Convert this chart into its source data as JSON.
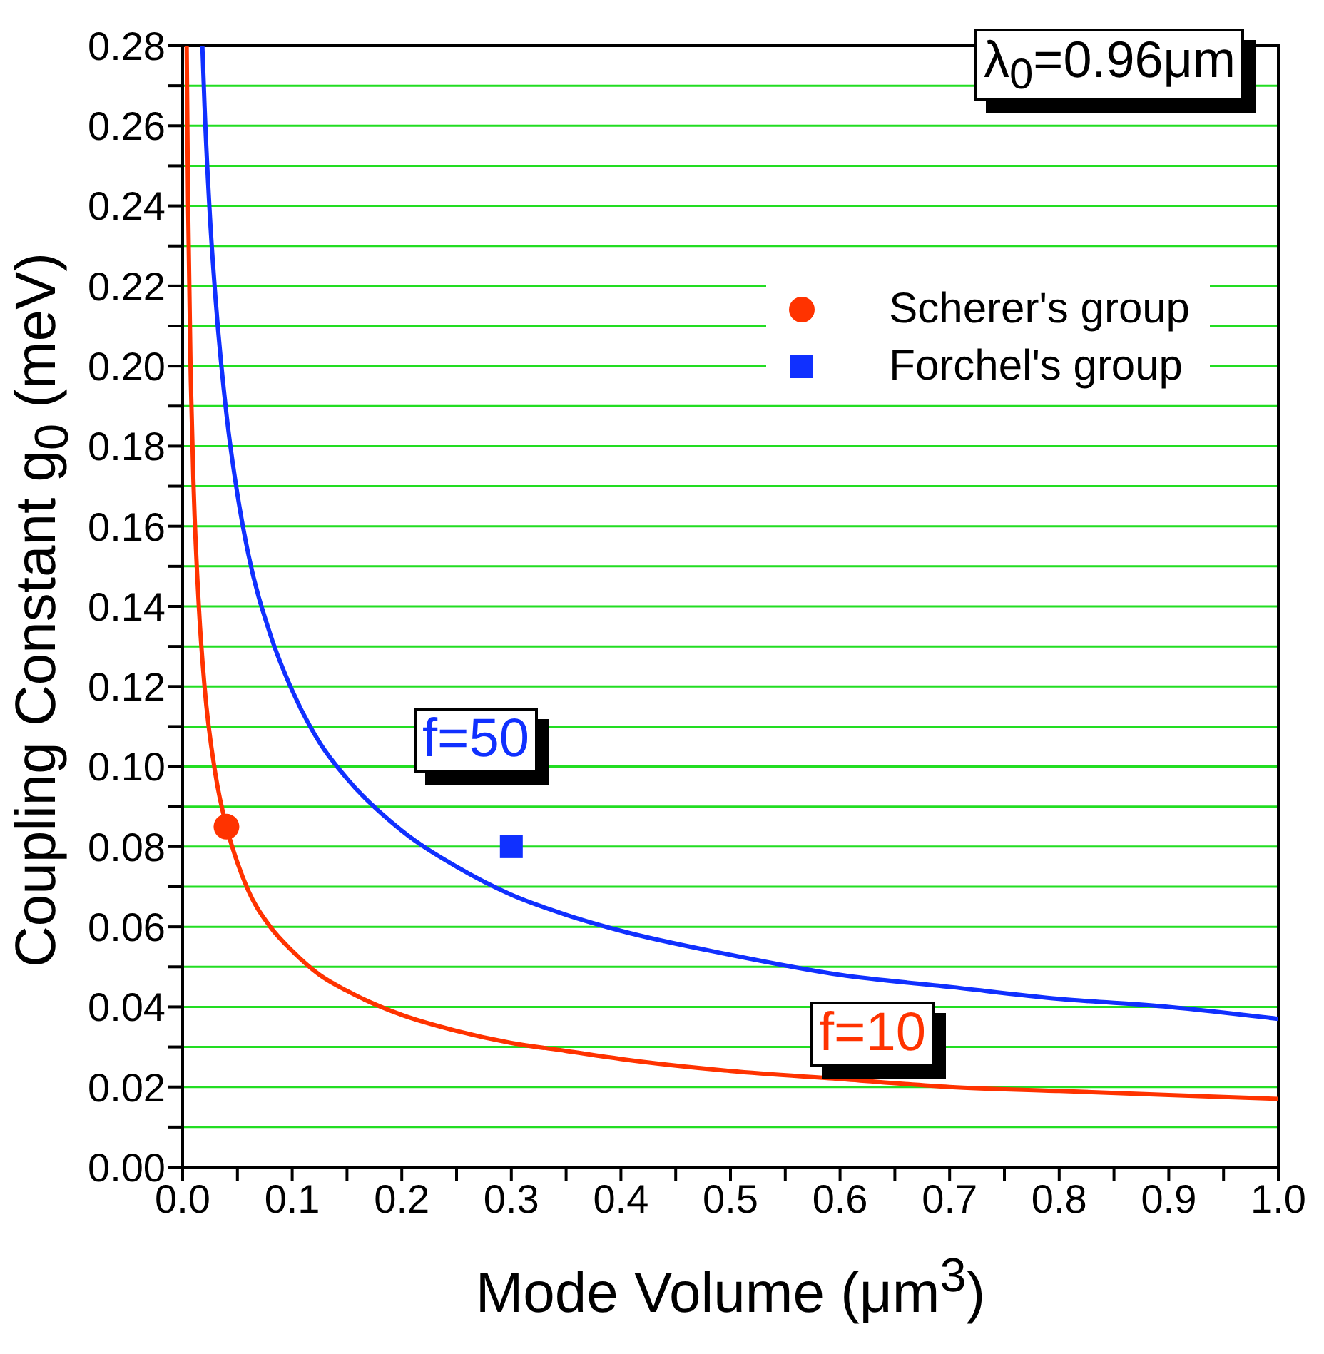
{
  "chart_data": {
    "type": "line",
    "xlabel": "Mode Volume (μm$^{3}$)",
    "ylabel": "Coupling Constant g$_{0}$ (meV)",
    "annotations": [
      "λ$_{0}$=0.96μm"
    ],
    "xlim": [
      0,
      1
    ],
    "ylim": [
      0,
      0.28
    ],
    "xticks": [
      {
        "value": 0,
        "label": "0.0"
      },
      {
        "value": 0.05,
        "label": null
      },
      {
        "value": 0.1,
        "label": "0.1"
      },
      {
        "value": 0.15,
        "label": null
      },
      {
        "value": 0.2,
        "label": "0.2"
      },
      {
        "value": 0.25,
        "label": null
      },
      {
        "value": 0.3,
        "label": "0.3"
      },
      {
        "value": 0.35,
        "label": null
      },
      {
        "value": 0.4,
        "label": "0.4"
      },
      {
        "value": 0.45,
        "label": null
      },
      {
        "value": 0.5,
        "label": "0.5"
      },
      {
        "value": 0.55,
        "label": null
      },
      {
        "value": 0.6,
        "label": "0.6"
      },
      {
        "value": 0.65,
        "label": null
      },
      {
        "value": 0.7,
        "label": "0.7"
      },
      {
        "value": 0.75,
        "label": null
      },
      {
        "value": 0.8,
        "label": "0.8"
      },
      {
        "value": 0.85,
        "label": null
      },
      {
        "value": 0.9,
        "label": "0.9"
      },
      {
        "value": 0.95,
        "label": null
      },
      {
        "value": 1,
        "label": "1.0"
      }
    ],
    "yticks": [
      {
        "value": 0,
        "label": "0.00"
      },
      {
        "value": 0.01,
        "label": null
      },
      {
        "value": 0.02,
        "label": "0.02"
      },
      {
        "value": 0.03,
        "label": null
      },
      {
        "value": 0.04,
        "label": "0.04"
      },
      {
        "value": 0.05,
        "label": null
      },
      {
        "value": 0.06,
        "label": "0.06"
      },
      {
        "value": 0.07,
        "label": null
      },
      {
        "value": 0.08,
        "label": "0.08"
      },
      {
        "value": 0.09,
        "label": null
      },
      {
        "value": 0.1,
        "label": "0.10"
      },
      {
        "value": 0.11,
        "label": null
      },
      {
        "value": 0.12,
        "label": "0.12"
      },
      {
        "value": 0.13,
        "label": null
      },
      {
        "value": 0.14,
        "label": "0.14"
      },
      {
        "value": 0.15,
        "label": null
      },
      {
        "value": 0.16,
        "label": "0.16"
      },
      {
        "value": 0.17,
        "label": null
      },
      {
        "value": 0.18,
        "label": "0.18"
      },
      {
        "value": 0.19,
        "label": null
      },
      {
        "value": 0.2,
        "label": "0.20"
      },
      {
        "value": 0.21,
        "label": null
      },
      {
        "value": 0.22,
        "label": "0.22"
      },
      {
        "value": 0.23,
        "label": null
      },
      {
        "value": 0.24,
        "label": "0.24"
      },
      {
        "value": 0.25,
        "label": null
      },
      {
        "value": 0.26,
        "label": "0.26"
      },
      {
        "value": 0.27,
        "label": null
      },
      {
        "value": 0.28,
        "label": "0.28"
      }
    ],
    "grid": "y",
    "legend": "top right",
    "marker": "none",
    "line_style": "solid",
    "series": [
      {
        "name": "f=10",
        "color": "#ff3300",
        "x": [
          0.0037,
          0.005,
          0.0075,
          0.01,
          0.015,
          0.02,
          0.03,
          0.04,
          0.05,
          0.06,
          0.08,
          0.1,
          0.125,
          0.15,
          0.2,
          0.25,
          0.3,
          0.35,
          0.4,
          0.5,
          0.6,
          0.7,
          0.8,
          0.9,
          1.0
        ],
        "values": [
          0.28,
          0.24,
          0.196,
          0.17,
          0.139,
          0.12,
          0.098,
          0.085,
          0.076,
          0.069,
          0.06,
          0.054,
          0.048,
          0.044,
          0.038,
          0.034,
          0.031,
          0.029,
          0.027,
          0.024,
          0.022,
          0.02,
          0.019,
          0.018,
          0.017
        ]
      },
      {
        "name": "f=50",
        "color": "#1030ff",
        "x": [
          0.018,
          0.02,
          0.025,
          0.03,
          0.04,
          0.05,
          0.06,
          0.08,
          0.1,
          0.125,
          0.15,
          0.2,
          0.25,
          0.3,
          0.35,
          0.4,
          0.5,
          0.6,
          0.7,
          0.8,
          0.9,
          1.0
        ],
        "values": [
          0.28,
          0.265,
          0.237,
          0.217,
          0.188,
          0.168,
          0.153,
          0.133,
          0.119,
          0.106,
          0.097,
          0.084,
          0.075,
          0.068,
          0.063,
          0.059,
          0.053,
          0.048,
          0.045,
          0.042,
          0.04,
          0.037
        ]
      },
      {
        "name": "Scherer's group",
        "color": "#ff3300",
        "type": "scatter",
        "marker": "circle",
        "x": [
          0.04
        ],
        "values": [
          0.085
        ]
      },
      {
        "name": "Forchel's group",
        "color": "#1030ff",
        "type": "scatter",
        "marker": "square",
        "x": [
          0.3
        ],
        "values": [
          0.08
        ]
      }
    ]
  }
}
